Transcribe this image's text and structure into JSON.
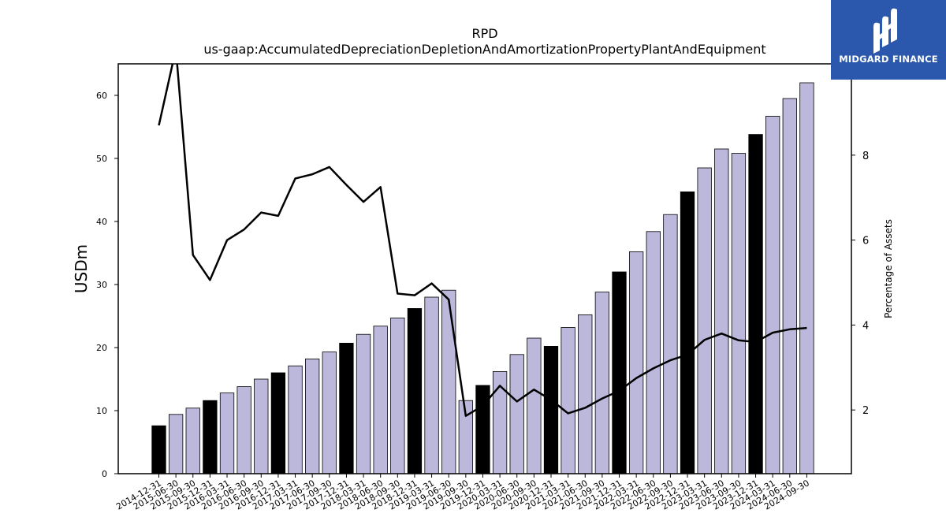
{
  "chart_data": {
    "type": "bar",
    "title": "RPD",
    "subtitle": "us-gaap:AccumulatedDepreciationDepletionAndAmortizationPropertyPlantAndEquipment",
    "ylabel": "USDm",
    "y2label": "Percentage of Assets",
    "ylim": [
      0,
      65
    ],
    "y2lim": [
      0.5,
      10.15
    ],
    "yticks": [
      0,
      10,
      20,
      30,
      40,
      50,
      60
    ],
    "y2ticks": [
      2,
      4,
      6,
      8
    ],
    "grid": false,
    "categories": [
      "2014-12-31",
      "2015-06-30",
      "2015-09-30",
      "2015-12-31",
      "2016-03-31",
      "2016-06-30",
      "2016-09-30",
      "2016-12-31",
      "2017-03-31",
      "2017-06-30",
      "2017-09-30",
      "2017-12-31",
      "2018-03-31",
      "2018-06-30",
      "2018-09-30",
      "2018-12-31",
      "2019-03-31",
      "2019-06-30",
      "2019-09-30",
      "2019-12-31",
      "2020-03-31",
      "2020-06-30",
      "2020-09-30",
      "2020-12-31",
      "2021-03-31",
      "2021-06-30",
      "2021-09-30",
      "2021-12-31",
      "2022-03-31",
      "2022-06-30",
      "2022-09-30",
      "2022-12-31",
      "2023-03-31",
      "2023-06-30",
      "2023-09-30",
      "2023-12-31",
      "2024-03-31",
      "2024-06-30",
      "2024-09-30"
    ],
    "series": [
      {
        "type": "bar",
        "axis": "left",
        "values": [
          7.6,
          9.4,
          10.4,
          11.6,
          12.8,
          13.8,
          15.0,
          16.0,
          17.1,
          18.2,
          19.3,
          20.7,
          22.1,
          23.4,
          24.7,
          26.2,
          28.0,
          29.1,
          11.6,
          14.0,
          16.2,
          18.9,
          21.5,
          20.2,
          23.2,
          25.2,
          28.8,
          32.0,
          35.2,
          38.4,
          41.1,
          44.7,
          48.5,
          51.5,
          50.8,
          53.8,
          56.7,
          59.5,
          62.0
        ],
        "highlight_color": "#000000",
        "color": "#bcb8dc",
        "highlight": [
          true,
          false,
          false,
          true,
          false,
          false,
          false,
          true,
          false,
          false,
          false,
          true,
          false,
          false,
          false,
          true,
          false,
          false,
          false,
          true,
          false,
          false,
          false,
          true,
          false,
          false,
          false,
          true,
          false,
          false,
          false,
          true,
          false,
          false,
          false,
          true,
          false,
          false,
          false
        ]
      },
      {
        "type": "line",
        "axis": "right",
        "color": "#000000",
        "values": [
          8.7,
          10.5,
          5.65,
          5.06,
          6.0,
          6.25,
          6.65,
          6.57,
          7.45,
          7.55,
          7.72,
          7.3,
          6.9,
          7.25,
          4.74,
          4.7,
          4.98,
          4.6,
          1.86,
          2.1,
          2.57,
          2.2,
          2.48,
          2.24,
          1.92,
          2.05,
          2.27,
          2.45,
          2.75,
          2.98,
          3.17,
          3.3,
          3.65,
          3.8,
          3.64,
          3.6,
          3.82,
          3.9,
          3.93
        ]
      }
    ]
  },
  "logo": {
    "name": "MIDGARD FINANCE",
    "icon": "midgard-m-logo-icon",
    "bg_color": "#2b58ac"
  }
}
